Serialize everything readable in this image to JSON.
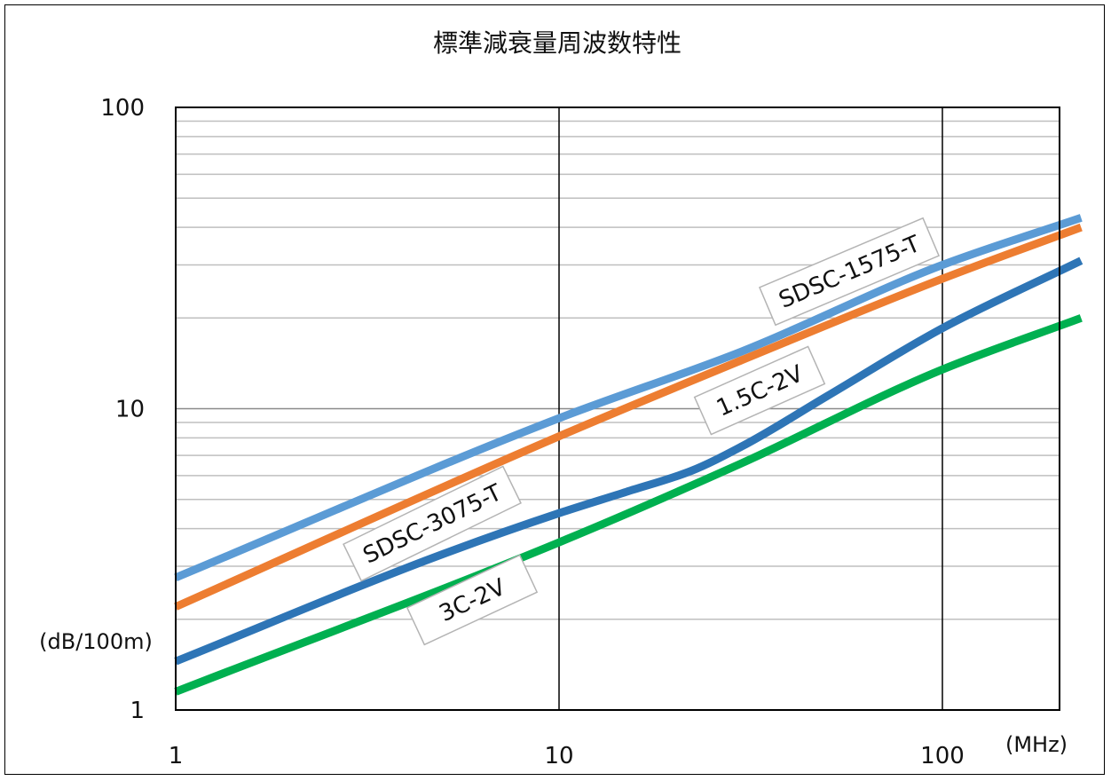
{
  "chart_data": {
    "type": "line",
    "title": "標準減衰量周波数特性",
    "xlabel": "(MHz)",
    "ylabel": "(dB/100m)",
    "x_scale": "log",
    "y_scale": "log",
    "xlim": [
      1,
      230
    ],
    "ylim": [
      1,
      100
    ],
    "x_ticks": [
      "1",
      "10",
      "100"
    ],
    "y_ticks": [
      "1",
      "10",
      "100"
    ],
    "grid": true,
    "series": [
      {
        "name": "SDSC-1575-T",
        "color": "#5b9bd5",
        "points": [
          [
            1,
            2.75
          ],
          [
            10,
            9.3
          ],
          [
            30,
            15.5
          ],
          [
            100,
            30
          ],
          [
            230,
            43
          ]
        ]
      },
      {
        "name": "1.5C-2V",
        "color": "#ed7d31",
        "points": [
          [
            1,
            2.2
          ],
          [
            10,
            8.1
          ],
          [
            30,
            14.5
          ],
          [
            100,
            27
          ],
          [
            230,
            40
          ]
        ]
      },
      {
        "name": "SDSC-3075-T",
        "color": "#2e75b6",
        "points": [
          [
            1,
            1.45
          ],
          [
            5,
            3.3
          ],
          [
            10,
            4.5
          ],
          [
            15,
            5.3
          ],
          [
            22,
            6.2
          ],
          [
            30,
            7.5
          ],
          [
            50,
            11
          ],
          [
            100,
            18.5
          ],
          [
            230,
            31
          ]
        ]
      },
      {
        "name": "3C-2V",
        "color": "#00b050",
        "points": [
          [
            1,
            1.15
          ],
          [
            10,
            3.6
          ],
          [
            30,
            6.6
          ],
          [
            100,
            13.5
          ],
          [
            230,
            20
          ]
        ]
      }
    ]
  }
}
